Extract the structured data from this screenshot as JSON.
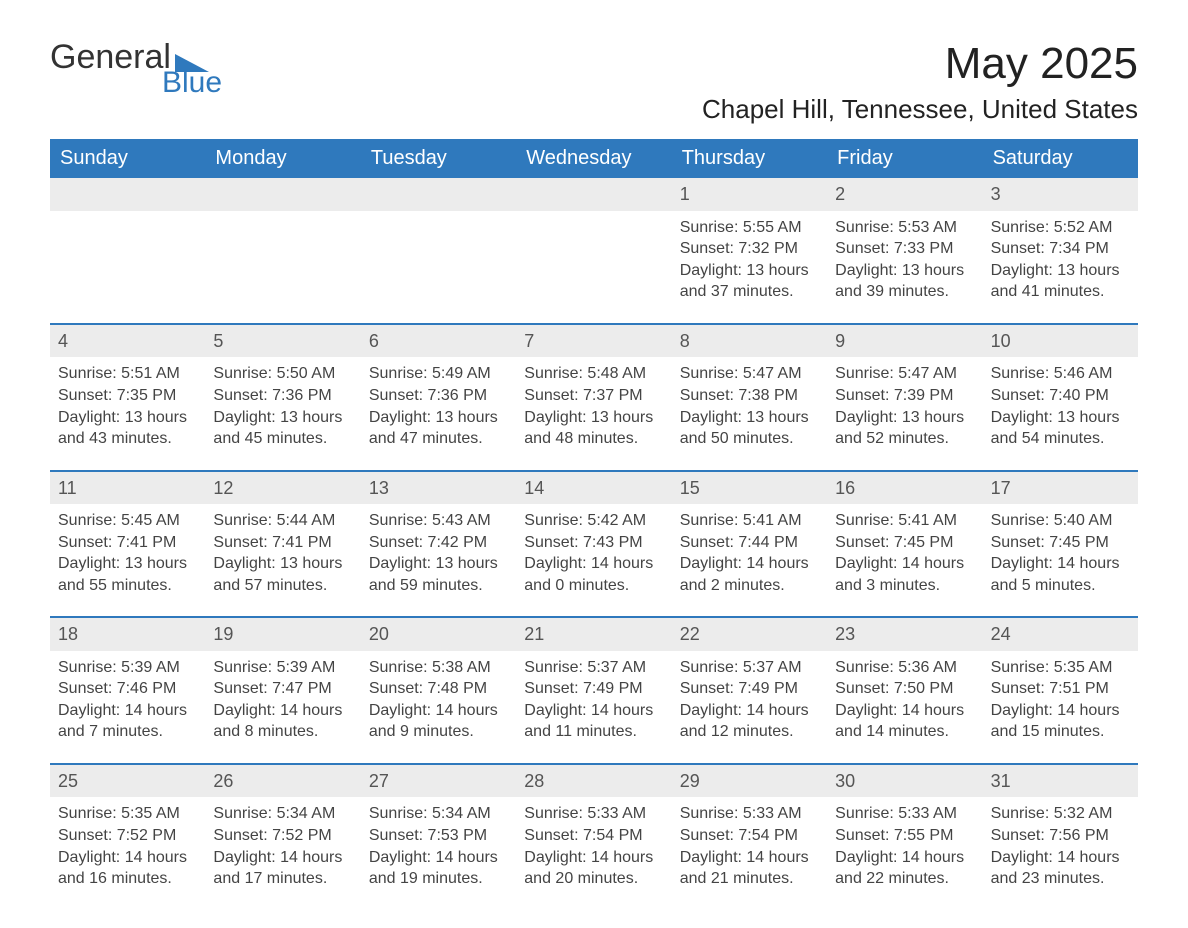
{
  "brand": {
    "part1": "General",
    "part2": "Blue",
    "accent_color": "#2f79bd"
  },
  "title": "May 2025",
  "location": "Chapel Hill, Tennessee, United States",
  "layout": {
    "columns": 7,
    "header_bg": "#2f79bd",
    "header_text_color": "#ffffff",
    "daynum_bg": "#ececec",
    "week_border_color": "#2f79bd",
    "body_text_color": "#444444",
    "title_fontsize": 44,
    "location_fontsize": 26,
    "header_fontsize": 20,
    "cell_fontsize": 16
  },
  "weekdays": [
    "Sunday",
    "Monday",
    "Tuesday",
    "Wednesday",
    "Thursday",
    "Friday",
    "Saturday"
  ],
  "weeks": [
    [
      {
        "empty": true
      },
      {
        "empty": true
      },
      {
        "empty": true
      },
      {
        "empty": true
      },
      {
        "day": "1",
        "sunrise": "Sunrise: 5:55 AM",
        "sunset": "Sunset: 7:32 PM",
        "daylight1": "Daylight: 13 hours",
        "daylight2": "and 37 minutes."
      },
      {
        "day": "2",
        "sunrise": "Sunrise: 5:53 AM",
        "sunset": "Sunset: 7:33 PM",
        "daylight1": "Daylight: 13 hours",
        "daylight2": "and 39 minutes."
      },
      {
        "day": "3",
        "sunrise": "Sunrise: 5:52 AM",
        "sunset": "Sunset: 7:34 PM",
        "daylight1": "Daylight: 13 hours",
        "daylight2": "and 41 minutes."
      }
    ],
    [
      {
        "day": "4",
        "sunrise": "Sunrise: 5:51 AM",
        "sunset": "Sunset: 7:35 PM",
        "daylight1": "Daylight: 13 hours",
        "daylight2": "and 43 minutes."
      },
      {
        "day": "5",
        "sunrise": "Sunrise: 5:50 AM",
        "sunset": "Sunset: 7:36 PM",
        "daylight1": "Daylight: 13 hours",
        "daylight2": "and 45 minutes."
      },
      {
        "day": "6",
        "sunrise": "Sunrise: 5:49 AM",
        "sunset": "Sunset: 7:36 PM",
        "daylight1": "Daylight: 13 hours",
        "daylight2": "and 47 minutes."
      },
      {
        "day": "7",
        "sunrise": "Sunrise: 5:48 AM",
        "sunset": "Sunset: 7:37 PM",
        "daylight1": "Daylight: 13 hours",
        "daylight2": "and 48 minutes."
      },
      {
        "day": "8",
        "sunrise": "Sunrise: 5:47 AM",
        "sunset": "Sunset: 7:38 PM",
        "daylight1": "Daylight: 13 hours",
        "daylight2": "and 50 minutes."
      },
      {
        "day": "9",
        "sunrise": "Sunrise: 5:47 AM",
        "sunset": "Sunset: 7:39 PM",
        "daylight1": "Daylight: 13 hours",
        "daylight2": "and 52 minutes."
      },
      {
        "day": "10",
        "sunrise": "Sunrise: 5:46 AM",
        "sunset": "Sunset: 7:40 PM",
        "daylight1": "Daylight: 13 hours",
        "daylight2": "and 54 minutes."
      }
    ],
    [
      {
        "day": "11",
        "sunrise": "Sunrise: 5:45 AM",
        "sunset": "Sunset: 7:41 PM",
        "daylight1": "Daylight: 13 hours",
        "daylight2": "and 55 minutes."
      },
      {
        "day": "12",
        "sunrise": "Sunrise: 5:44 AM",
        "sunset": "Sunset: 7:41 PM",
        "daylight1": "Daylight: 13 hours",
        "daylight2": "and 57 minutes."
      },
      {
        "day": "13",
        "sunrise": "Sunrise: 5:43 AM",
        "sunset": "Sunset: 7:42 PM",
        "daylight1": "Daylight: 13 hours",
        "daylight2": "and 59 minutes."
      },
      {
        "day": "14",
        "sunrise": "Sunrise: 5:42 AM",
        "sunset": "Sunset: 7:43 PM",
        "daylight1": "Daylight: 14 hours",
        "daylight2": "and 0 minutes."
      },
      {
        "day": "15",
        "sunrise": "Sunrise: 5:41 AM",
        "sunset": "Sunset: 7:44 PM",
        "daylight1": "Daylight: 14 hours",
        "daylight2": "and 2 minutes."
      },
      {
        "day": "16",
        "sunrise": "Sunrise: 5:41 AM",
        "sunset": "Sunset: 7:45 PM",
        "daylight1": "Daylight: 14 hours",
        "daylight2": "and 3 minutes."
      },
      {
        "day": "17",
        "sunrise": "Sunrise: 5:40 AM",
        "sunset": "Sunset: 7:45 PM",
        "daylight1": "Daylight: 14 hours",
        "daylight2": "and 5 minutes."
      }
    ],
    [
      {
        "day": "18",
        "sunrise": "Sunrise: 5:39 AM",
        "sunset": "Sunset: 7:46 PM",
        "daylight1": "Daylight: 14 hours",
        "daylight2": "and 7 minutes."
      },
      {
        "day": "19",
        "sunrise": "Sunrise: 5:39 AM",
        "sunset": "Sunset: 7:47 PM",
        "daylight1": "Daylight: 14 hours",
        "daylight2": "and 8 minutes."
      },
      {
        "day": "20",
        "sunrise": "Sunrise: 5:38 AM",
        "sunset": "Sunset: 7:48 PM",
        "daylight1": "Daylight: 14 hours",
        "daylight2": "and 9 minutes."
      },
      {
        "day": "21",
        "sunrise": "Sunrise: 5:37 AM",
        "sunset": "Sunset: 7:49 PM",
        "daylight1": "Daylight: 14 hours",
        "daylight2": "and 11 minutes."
      },
      {
        "day": "22",
        "sunrise": "Sunrise: 5:37 AM",
        "sunset": "Sunset: 7:49 PM",
        "daylight1": "Daylight: 14 hours",
        "daylight2": "and 12 minutes."
      },
      {
        "day": "23",
        "sunrise": "Sunrise: 5:36 AM",
        "sunset": "Sunset: 7:50 PM",
        "daylight1": "Daylight: 14 hours",
        "daylight2": "and 14 minutes."
      },
      {
        "day": "24",
        "sunrise": "Sunrise: 5:35 AM",
        "sunset": "Sunset: 7:51 PM",
        "daylight1": "Daylight: 14 hours",
        "daylight2": "and 15 minutes."
      }
    ],
    [
      {
        "day": "25",
        "sunrise": "Sunrise: 5:35 AM",
        "sunset": "Sunset: 7:52 PM",
        "daylight1": "Daylight: 14 hours",
        "daylight2": "and 16 minutes."
      },
      {
        "day": "26",
        "sunrise": "Sunrise: 5:34 AM",
        "sunset": "Sunset: 7:52 PM",
        "daylight1": "Daylight: 14 hours",
        "daylight2": "and 17 minutes."
      },
      {
        "day": "27",
        "sunrise": "Sunrise: 5:34 AM",
        "sunset": "Sunset: 7:53 PM",
        "daylight1": "Daylight: 14 hours",
        "daylight2": "and 19 minutes."
      },
      {
        "day": "28",
        "sunrise": "Sunrise: 5:33 AM",
        "sunset": "Sunset: 7:54 PM",
        "daylight1": "Daylight: 14 hours",
        "daylight2": "and 20 minutes."
      },
      {
        "day": "29",
        "sunrise": "Sunrise: 5:33 AM",
        "sunset": "Sunset: 7:54 PM",
        "daylight1": "Daylight: 14 hours",
        "daylight2": "and 21 minutes."
      },
      {
        "day": "30",
        "sunrise": "Sunrise: 5:33 AM",
        "sunset": "Sunset: 7:55 PM",
        "daylight1": "Daylight: 14 hours",
        "daylight2": "and 22 minutes."
      },
      {
        "day": "31",
        "sunrise": "Sunrise: 5:32 AM",
        "sunset": "Sunset: 7:56 PM",
        "daylight1": "Daylight: 14 hours",
        "daylight2": "and 23 minutes."
      }
    ]
  ]
}
